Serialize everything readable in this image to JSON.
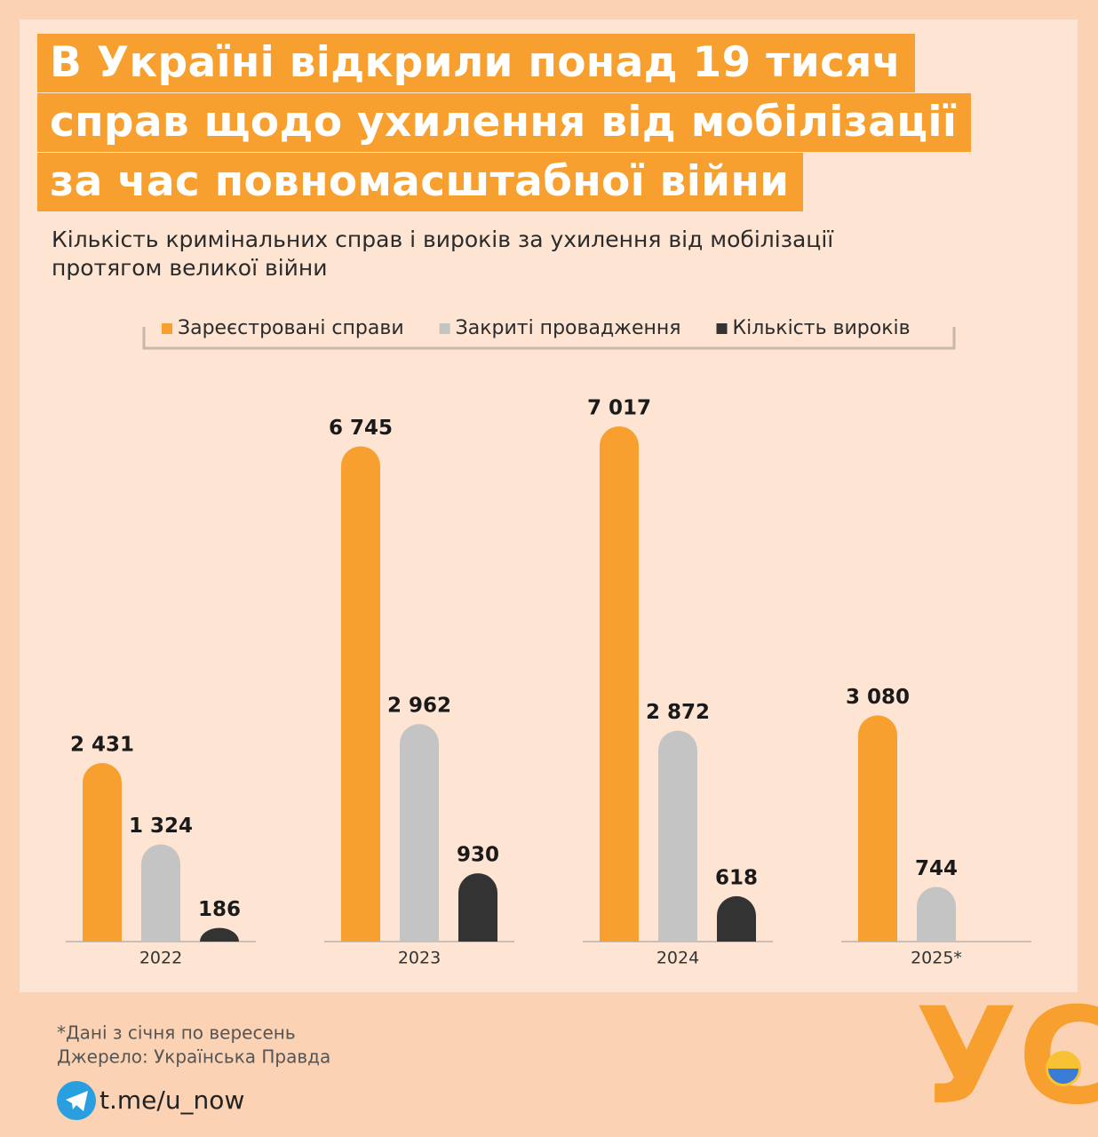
{
  "header": {
    "title_lines": [
      "В Україні відкрили понад 19 тисяч",
      "справ щодо ухилення від мобілізації",
      "за час повномасштабної війни"
    ],
    "subtitle": "Кількість кримінальних справ і вироків за ухилення від мобілізації протягом великої війни"
  },
  "chart_data": {
    "type": "bar",
    "categories": [
      "2022",
      "2023",
      "2024",
      "2025*"
    ],
    "series": [
      {
        "name": "Зареєстровані справи",
        "color": "#f7a030",
        "values": [
          2431,
          6745,
          7017,
          3080
        ],
        "value_labels": [
          "2 431",
          "6 745",
          "7 017",
          "3 080"
        ]
      },
      {
        "name": "Закриті провадження",
        "color": "#c4c4c4",
        "values": [
          1324,
          2962,
          2872,
          744
        ],
        "value_labels": [
          "1 324",
          "2 962",
          "2 872",
          "744"
        ]
      },
      {
        "name": "Кількість вироків",
        "color": "#333333",
        "values": [
          186,
          930,
          618,
          null
        ],
        "value_labels": [
          "186",
          "930",
          "618",
          null
        ]
      }
    ]
  },
  "footer": {
    "note": "*Дані з січня по вересень",
    "source": "Джерело: Українська Правда",
    "link": "t.me/u_now",
    "logo": "УС"
  }
}
